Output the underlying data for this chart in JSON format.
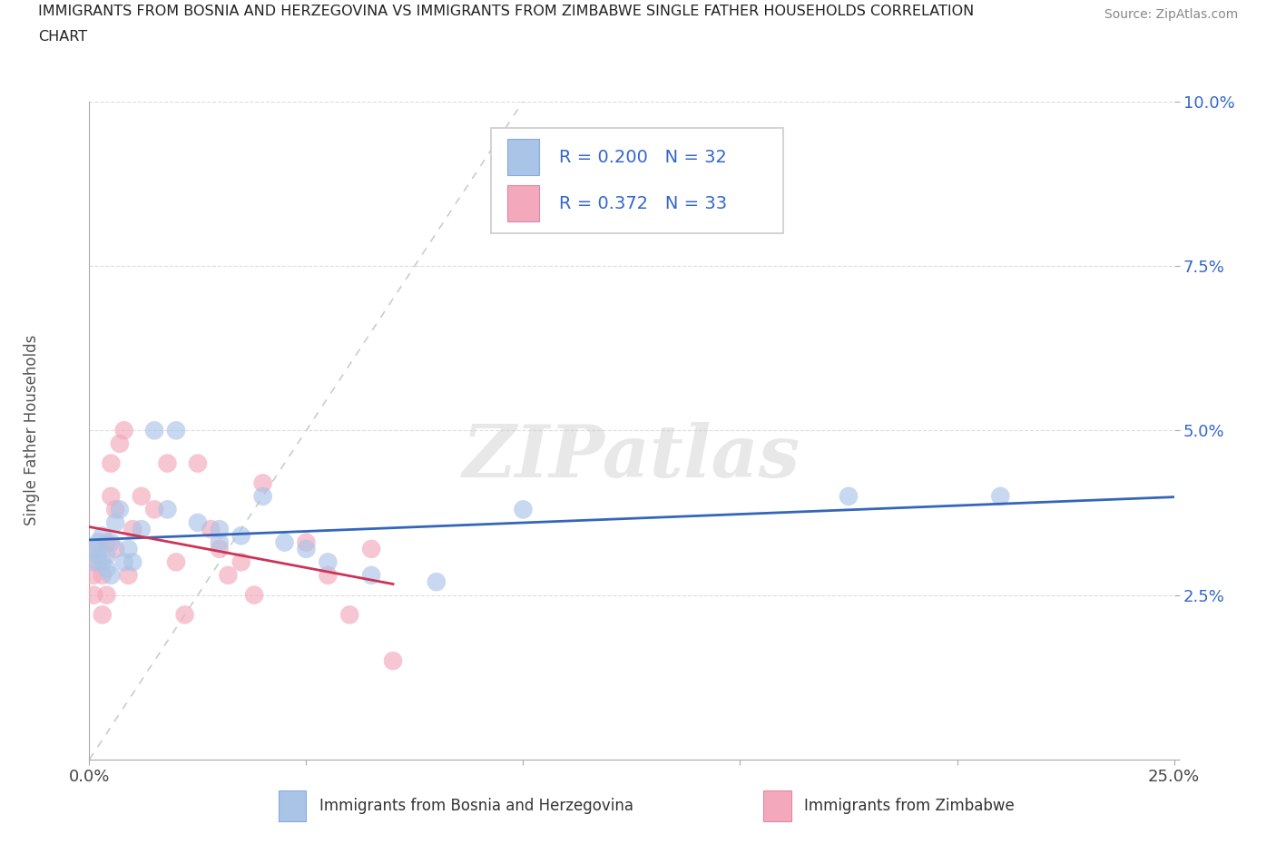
{
  "title_line1": "IMMIGRANTS FROM BOSNIA AND HERZEGOVINA VS IMMIGRANTS FROM ZIMBABWE SINGLE FATHER HOUSEHOLDS CORRELATION",
  "title_line2": "CHART",
  "source": "Source: ZipAtlas.com",
  "ylabel": "Single Father Households",
  "xlim": [
    0.0,
    0.25
  ],
  "ylim": [
    0.0,
    0.1
  ],
  "legend_bosnia_R": "0.200",
  "legend_bosnia_N": "32",
  "legend_zimbabwe_R": "0.372",
  "legend_zimbabwe_N": "33",
  "color_bosnia": "#aac4e8",
  "color_zimbabwe": "#f4a8bc",
  "color_bosnia_line": "#3366bb",
  "color_zimbabwe_line": "#cc3355",
  "color_diag_line": "#cccccc",
  "color_legend_text": "#3366cc",
  "color_ytick": "#3366cc",
  "color_xtick": "#555555",
  "background_color": "#ffffff",
  "watermark": "ZIPatlas",
  "figsize": [
    14.06,
    9.3
  ],
  "dpi": 100,
  "bosnia_x": [
    0.001,
    0.001,
    0.002,
    0.002,
    0.003,
    0.003,
    0.004,
    0.004,
    0.005,
    0.005,
    0.006,
    0.007,
    0.008,
    0.009,
    0.01,
    0.012,
    0.015,
    0.018,
    0.02,
    0.025,
    0.03,
    0.03,
    0.035,
    0.04,
    0.045,
    0.05,
    0.055,
    0.065,
    0.08,
    0.1,
    0.175,
    0.21
  ],
  "bosnia_y": [
    0.03,
    0.032,
    0.033,
    0.031,
    0.03,
    0.034,
    0.029,
    0.031,
    0.028,
    0.033,
    0.036,
    0.038,
    0.03,
    0.032,
    0.03,
    0.035,
    0.05,
    0.038,
    0.05,
    0.036,
    0.035,
    0.033,
    0.034,
    0.04,
    0.033,
    0.032,
    0.03,
    0.028,
    0.027,
    0.038,
    0.04,
    0.04
  ],
  "zimbabwe_x": [
    0.001,
    0.001,
    0.002,
    0.002,
    0.003,
    0.003,
    0.004,
    0.004,
    0.005,
    0.005,
    0.006,
    0.006,
    0.007,
    0.008,
    0.009,
    0.01,
    0.012,
    0.015,
    0.018,
    0.02,
    0.022,
    0.025,
    0.028,
    0.03,
    0.032,
    0.035,
    0.038,
    0.04,
    0.05,
    0.055,
    0.06,
    0.065,
    0.07
  ],
  "zimbabwe_y": [
    0.025,
    0.028,
    0.03,
    0.032,
    0.022,
    0.028,
    0.025,
    0.033,
    0.04,
    0.045,
    0.032,
    0.038,
    0.048,
    0.05,
    0.028,
    0.035,
    0.04,
    0.038,
    0.045,
    0.03,
    0.022,
    0.045,
    0.035,
    0.032,
    0.028,
    0.03,
    0.025,
    0.042,
    0.033,
    0.028,
    0.022,
    0.032,
    0.015
  ]
}
